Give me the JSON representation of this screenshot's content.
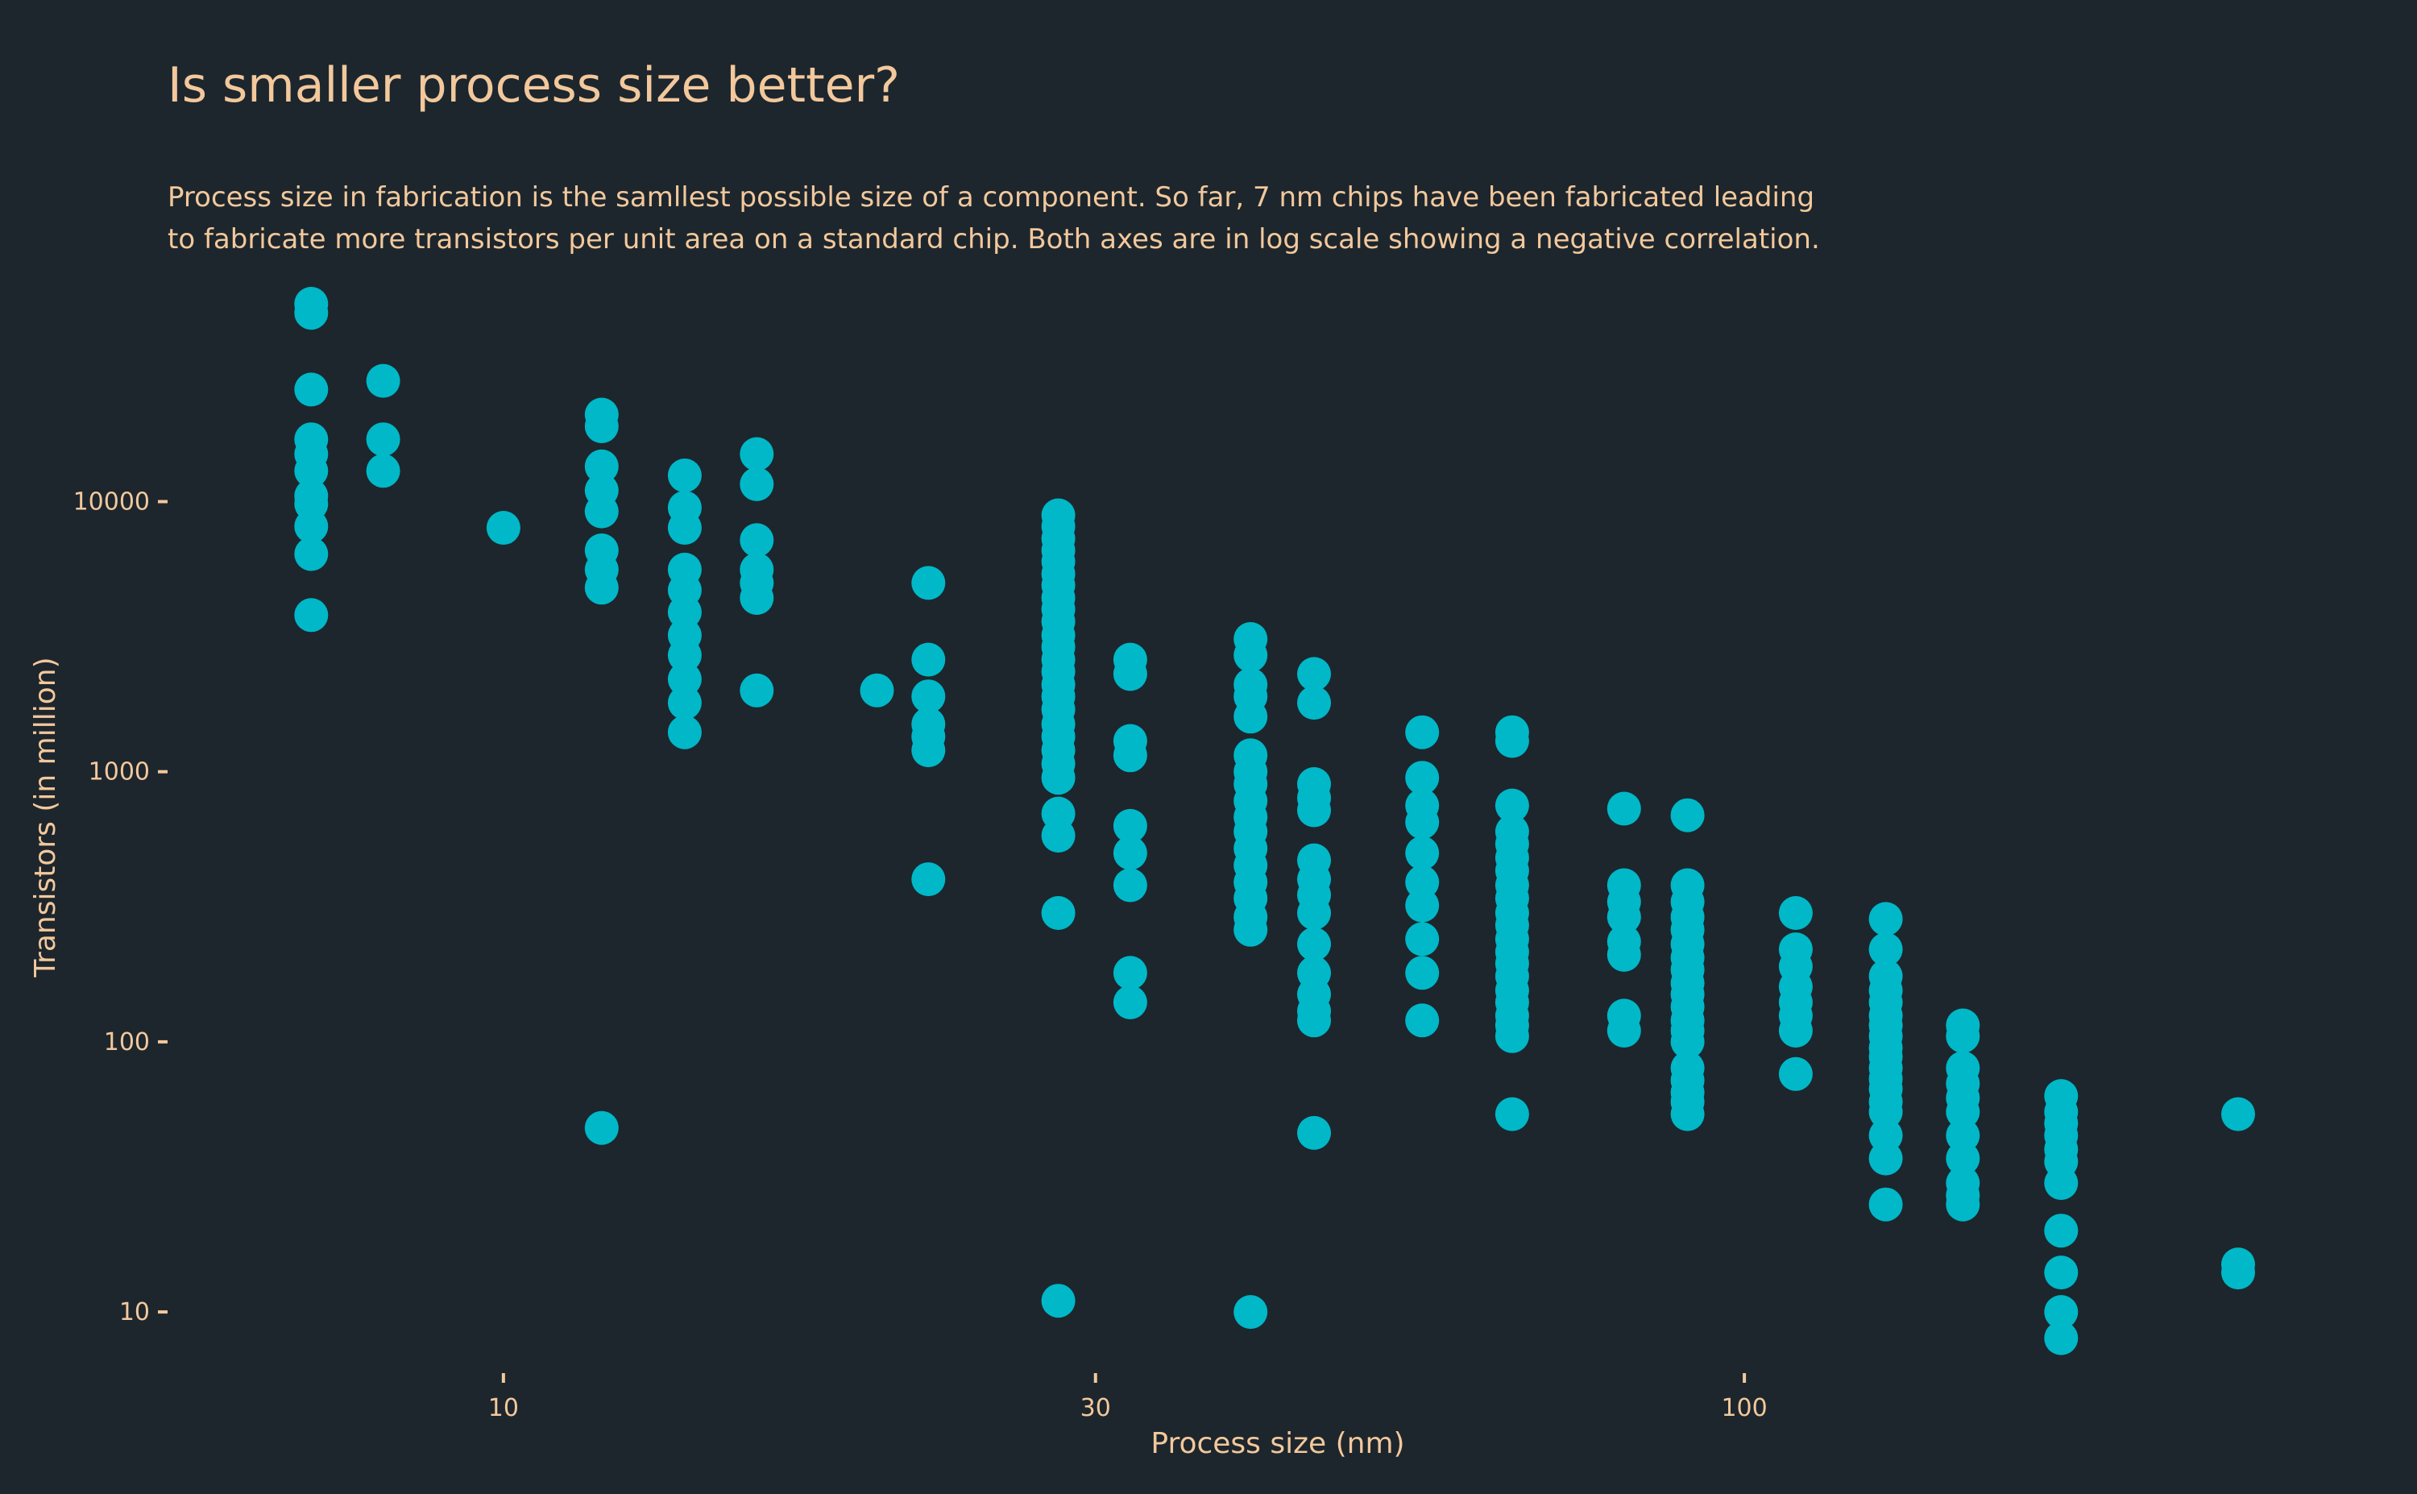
{
  "chart_data": {
    "type": "scatter",
    "title": "Is smaller process size better?",
    "subtitle_lines": [
      "Process size in fabrication is the samllest possible size of a component. So far, 7 nm chips have been fabricated leading",
      "to fabricate more transistors per unit area on a standard chip. Both axes are in log scale showing a negative correlation."
    ],
    "xlabel": "Process size (nm)",
    "ylabel": "Transistors (in million)",
    "x_scale": "log",
    "y_scale": "log",
    "xlim": [
      5.6,
      300
    ],
    "ylim": [
      7,
      65000
    ],
    "x_ticks": [
      {
        "value": 10,
        "label": "10"
      },
      {
        "value": 30,
        "label": "30"
      },
      {
        "value": 100,
        "label": "100"
      }
    ],
    "y_ticks": [
      {
        "value": 10,
        "label": "10"
      },
      {
        "value": 100,
        "label": "100"
      },
      {
        "value": 1000,
        "label": "1000"
      },
      {
        "value": 10000,
        "label": "10000"
      }
    ],
    "grid": false,
    "legend": "none",
    "point_color": "#00b8c8",
    "background": "#1d262d",
    "text_color": "#f2c89c",
    "points": [
      [
        7,
        54000
      ],
      [
        7,
        50000
      ],
      [
        7,
        26000
      ],
      [
        7,
        17000
      ],
      [
        7,
        15000
      ],
      [
        7,
        13000
      ],
      [
        7,
        10500
      ],
      [
        7,
        9800
      ],
      [
        7,
        8100
      ],
      [
        7,
        6400
      ],
      [
        7,
        3800
      ],
      [
        8,
        28000
      ],
      [
        8,
        17000
      ],
      [
        8,
        13000
      ],
      [
        10,
        8000
      ],
      [
        12,
        21000
      ],
      [
        12,
        19000
      ],
      [
        12,
        13500
      ],
      [
        12,
        11000
      ],
      [
        12,
        9200
      ],
      [
        12,
        6600
      ],
      [
        12,
        5600
      ],
      [
        12,
        4800
      ],
      [
        12,
        48
      ],
      [
        14,
        12500
      ],
      [
        14,
        9500
      ],
      [
        14,
        8000
      ],
      [
        14,
        5600
      ],
      [
        14,
        4700
      ],
      [
        14,
        3900
      ],
      [
        14,
        3200
      ],
      [
        14,
        2700
      ],
      [
        14,
        2200
      ],
      [
        14,
        1800
      ],
      [
        14,
        1400
      ],
      [
        16,
        15000
      ],
      [
        16,
        11600
      ],
      [
        16,
        7200
      ],
      [
        16,
        5600
      ],
      [
        16,
        5000
      ],
      [
        16,
        4400
      ],
      [
        16,
        2000
      ],
      [
        20,
        2000
      ],
      [
        22,
        5000
      ],
      [
        22,
        2600
      ],
      [
        22,
        1900
      ],
      [
        22,
        1500
      ],
      [
        22,
        1350
      ],
      [
        22,
        1200
      ],
      [
        22,
        400
      ],
      [
        28,
        8900
      ],
      [
        28,
        8100
      ],
      [
        28,
        7300
      ],
      [
        28,
        6600
      ],
      [
        28,
        6000
      ],
      [
        28,
        5400
      ],
      [
        28,
        4900
      ],
      [
        28,
        4400
      ],
      [
        28,
        4000
      ],
      [
        28,
        3600
      ],
      [
        28,
        3200
      ],
      [
        28,
        2900
      ],
      [
        28,
        2600
      ],
      [
        28,
        2350
      ],
      [
        28,
        2100
      ],
      [
        28,
        1900
      ],
      [
        28,
        1700
      ],
      [
        28,
        1500
      ],
      [
        28,
        1350
      ],
      [
        28,
        1200
      ],
      [
        28,
        1070
      ],
      [
        28,
        950
      ],
      [
        28,
        700
      ],
      [
        28,
        580
      ],
      [
        28,
        300
      ],
      [
        28,
        11
      ],
      [
        32,
        2600
      ],
      [
        32,
        2300
      ],
      [
        32,
        1300
      ],
      [
        32,
        1150
      ],
      [
        32,
        630
      ],
      [
        32,
        500
      ],
      [
        32,
        380
      ],
      [
        32,
        180
      ],
      [
        32,
        140
      ],
      [
        40,
        3100
      ],
      [
        40,
        2700
      ],
      [
        40,
        2100
      ],
      [
        40,
        1900
      ],
      [
        40,
        1600
      ],
      [
        40,
        1150
      ],
      [
        40,
        1000
      ],
      [
        40,
        900
      ],
      [
        40,
        780
      ],
      [
        40,
        680
      ],
      [
        40,
        600
      ],
      [
        40,
        520
      ],
      [
        40,
        450
      ],
      [
        40,
        390
      ],
      [
        40,
        340
      ],
      [
        40,
        290
      ],
      [
        40,
        260
      ],
      [
        40,
        10
      ],
      [
        45,
        2300
      ],
      [
        45,
        1800
      ],
      [
        45,
        900
      ],
      [
        45,
        800
      ],
      [
        45,
        720
      ],
      [
        45,
        470
      ],
      [
        45,
        400
      ],
      [
        45,
        350
      ],
      [
        45,
        300
      ],
      [
        45,
        230
      ],
      [
        45,
        180
      ],
      [
        45,
        150
      ],
      [
        45,
        130
      ],
      [
        45,
        120
      ],
      [
        45,
        46
      ],
      [
        55,
        1400
      ],
      [
        55,
        950
      ],
      [
        55,
        750
      ],
      [
        55,
        650
      ],
      [
        55,
        500
      ],
      [
        55,
        390
      ],
      [
        55,
        320
      ],
      [
        55,
        240
      ],
      [
        55,
        180
      ],
      [
        55,
        120
      ],
      [
        65,
        1400
      ],
      [
        65,
        1300
      ],
      [
        65,
        750
      ],
      [
        65,
        600
      ],
      [
        65,
        540
      ],
      [
        65,
        480
      ],
      [
        65,
        430
      ],
      [
        65,
        380
      ],
      [
        65,
        340
      ],
      [
        65,
        300
      ],
      [
        65,
        270
      ],
      [
        65,
        240
      ],
      [
        65,
        215
      ],
      [
        65,
        195
      ],
      [
        65,
        175
      ],
      [
        65,
        155
      ],
      [
        65,
        140
      ],
      [
        65,
        125
      ],
      [
        65,
        115
      ],
      [
        65,
        105
      ],
      [
        65,
        54
      ],
      [
        80,
        730
      ],
      [
        80,
        380
      ],
      [
        80,
        330
      ],
      [
        80,
        290
      ],
      [
        80,
        235
      ],
      [
        80,
        210
      ],
      [
        80,
        125
      ],
      [
        80,
        110
      ],
      [
        90,
        690
      ],
      [
        90,
        380
      ],
      [
        90,
        330
      ],
      [
        90,
        290
      ],
      [
        90,
        260
      ],
      [
        90,
        230
      ],
      [
        90,
        205
      ],
      [
        90,
        185
      ],
      [
        90,
        165
      ],
      [
        90,
        150
      ],
      [
        90,
        135
      ],
      [
        90,
        120
      ],
      [
        90,
        110
      ],
      [
        90,
        100
      ],
      [
        90,
        80
      ],
      [
        90,
        72
      ],
      [
        90,
        65
      ],
      [
        90,
        60
      ],
      [
        90,
        54
      ],
      [
        110,
        300
      ],
      [
        110,
        220
      ],
      [
        110,
        190
      ],
      [
        110,
        160
      ],
      [
        110,
        140
      ],
      [
        110,
        125
      ],
      [
        110,
        110
      ],
      [
        110,
        76
      ],
      [
        130,
        285
      ],
      [
        130,
        220
      ],
      [
        130,
        175
      ],
      [
        130,
        155
      ],
      [
        130,
        140
      ],
      [
        130,
        125
      ],
      [
        130,
        115
      ],
      [
        130,
        105
      ],
      [
        130,
        95
      ],
      [
        130,
        88
      ],
      [
        130,
        80
      ],
      [
        130,
        73
      ],
      [
        130,
        67
      ],
      [
        130,
        60
      ],
      [
        130,
        55
      ],
      [
        130,
        45
      ],
      [
        130,
        37
      ],
      [
        130,
        25
      ],
      [
        150,
        115
      ],
      [
        150,
        105
      ],
      [
        150,
        80
      ],
      [
        150,
        70
      ],
      [
        150,
        62
      ],
      [
        150,
        55
      ],
      [
        150,
        45
      ],
      [
        150,
        37
      ],
      [
        150,
        30
      ],
      [
        150,
        27
      ],
      [
        150,
        25
      ],
      [
        180,
        63
      ],
      [
        180,
        55
      ],
      [
        180,
        50
      ],
      [
        180,
        45
      ],
      [
        180,
        40
      ],
      [
        180,
        36
      ],
      [
        180,
        30
      ],
      [
        180,
        20
      ],
      [
        180,
        14
      ],
      [
        180,
        10
      ],
      [
        180,
        8
      ],
      [
        250,
        54
      ],
      [
        250,
        15
      ],
      [
        250,
        14
      ]
    ]
  }
}
